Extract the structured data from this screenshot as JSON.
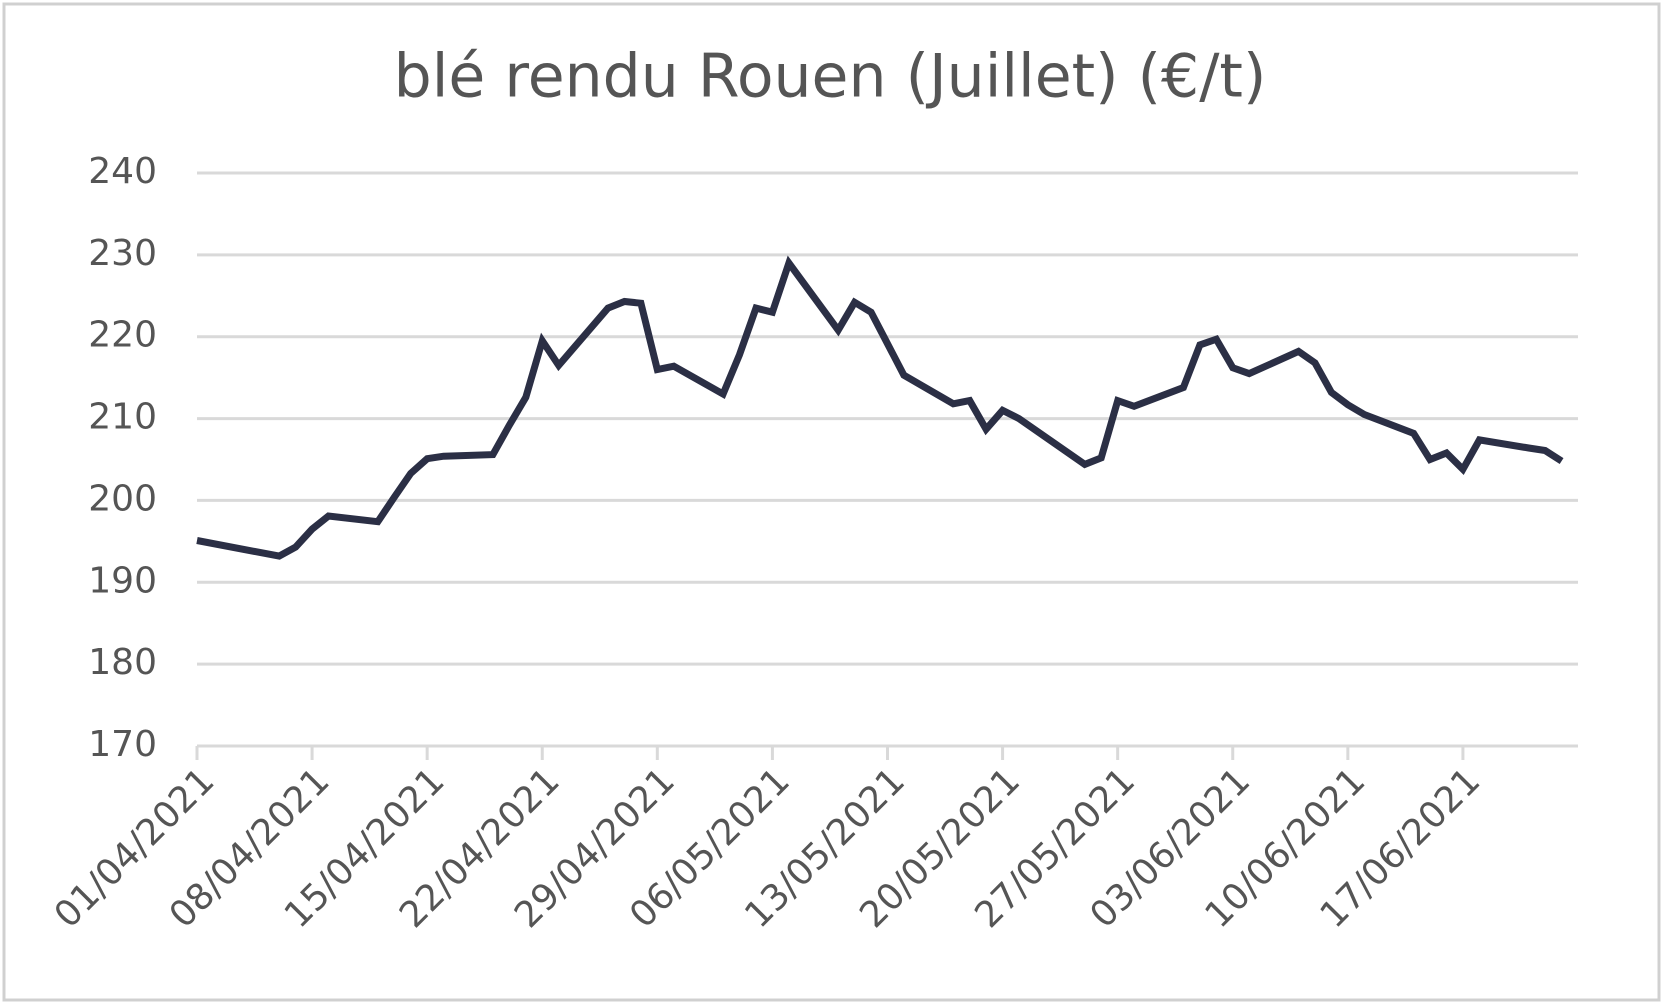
{
  "chart_data": {
    "type": "line",
    "title": "blé rendu Rouen (Juillet) (€/t)",
    "x": [
      "01/04/2021",
      "06/04/2021",
      "07/04/2021",
      "08/04/2021",
      "09/04/2021",
      "12/04/2021",
      "13/04/2021",
      "14/04/2021",
      "15/04/2021",
      "16/04/2021",
      "19/04/2021",
      "20/04/2021",
      "21/04/2021",
      "22/04/2021",
      "23/04/2021",
      "26/04/2021",
      "27/04/2021",
      "28/04/2021",
      "29/04/2021",
      "30/04/2021",
      "03/05/2021",
      "04/05/2021",
      "05/05/2021",
      "06/05/2021",
      "07/05/2021",
      "10/05/2021",
      "11/05/2021",
      "12/05/2021",
      "14/05/2021",
      "17/05/2021",
      "18/05/2021",
      "19/05/2021",
      "20/05/2021",
      "21/05/2021",
      "25/05/2021",
      "26/05/2021",
      "27/05/2021",
      "28/05/2021",
      "31/05/2021",
      "01/06/2021",
      "02/06/2021",
      "03/06/2021",
      "04/06/2021",
      "07/06/2021",
      "08/06/2021",
      "09/06/2021",
      "10/06/2021",
      "11/06/2021",
      "14/06/2021",
      "15/06/2021",
      "16/06/2021",
      "17/06/2021",
      "18/06/2021",
      "21/06/2021",
      "22/06/2021",
      "23/06/2021"
    ],
    "series": [
      {
        "color": "#2b2f45",
        "values": [
          195.1,
          193.2,
          194.3,
          196.5,
          198.1,
          197.4,
          200.4,
          203.3,
          205.1,
          205.4,
          205.6,
          209.2,
          212.6,
          219.5,
          216.5,
          223.5,
          224.3,
          224.1,
          216.0,
          216.4,
          213.0,
          217.8,
          223.5,
          223.0,
          229.0,
          220.8,
          224.2,
          223.0,
          215.3,
          211.8,
          212.2,
          208.7,
          211.0,
          210.0,
          204.4,
          205.2,
          212.2,
          211.5,
          213.8,
          219.0,
          219.7,
          216.2,
          215.5,
          218.2,
          216.8,
          213.2,
          211.7,
          210.5,
          208.2,
          205.0,
          205.8,
          203.8,
          207.4,
          206.4,
          206.1,
          204.8
        ]
      }
    ],
    "xlim": [
      "01/04/2021",
      "24/06/2021"
    ],
    "xticks": [
      "01/04/2021",
      "08/04/2021",
      "15/04/2021",
      "22/04/2021",
      "29/04/2021",
      "06/05/2021",
      "13/05/2021",
      "20/05/2021",
      "27/05/2021",
      "03/06/2021",
      "10/06/2021",
      "17/06/2021"
    ],
    "ylim": [
      170,
      240
    ],
    "yticks": [
      170,
      180,
      190,
      200,
      210,
      220,
      230,
      240
    ],
    "grid": true
  }
}
